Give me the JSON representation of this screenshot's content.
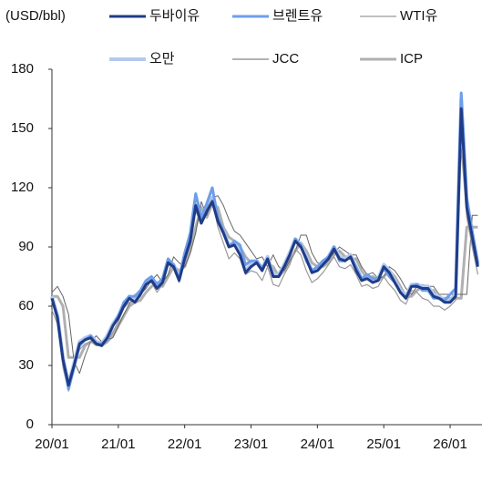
{
  "chart_data": {
    "type": "line",
    "unit_label": "(USD/bbl)",
    "x": [
      "20/01",
      "20/02",
      "20/03",
      "20/04",
      "20/05",
      "20/06",
      "20/07",
      "20/08",
      "20/09",
      "20/10",
      "20/11",
      "20/12",
      "21/01",
      "21/02",
      "21/03",
      "21/04",
      "21/05",
      "21/06",
      "21/07",
      "21/08",
      "21/09",
      "21/10",
      "21/11",
      "21/12",
      "22/01",
      "22/02",
      "22/03",
      "22/04",
      "22/05",
      "22/06",
      "22/07",
      "22/08",
      "22/09",
      "22/10",
      "22/11",
      "22/12",
      "23/01",
      "23/02",
      "23/03",
      "23/04",
      "23/05",
      "23/06",
      "23/07",
      "23/08",
      "23/09",
      "23/10",
      "23/11",
      "23/12",
      "24/01",
      "24/02",
      "24/03",
      "24/04",
      "24/05",
      "24/06",
      "24/07",
      "24/08",
      "24/09",
      "24/10",
      "24/11",
      "24/12",
      "25/01",
      "25/02",
      "25/03",
      "25/04",
      "25/05",
      "25/06",
      "25/07",
      "25/08",
      "25/09",
      "25/10",
      "25/11",
      "25/12",
      "26/01",
      "26/02",
      "26/03",
      "26/04",
      "26/05",
      "26/06"
    ],
    "xticks": [
      "20/01",
      "21/01",
      "22/01",
      "23/01",
      "24/01",
      "25/01",
      "26/01"
    ],
    "ylim": [
      0,
      180
    ],
    "yticks": [
      0,
      30,
      60,
      90,
      120,
      150,
      180
    ],
    "series": [
      {
        "name": "두바이유",
        "color": "#1f3c88",
        "width": 3,
        "values": [
          64,
          54,
          33,
          20,
          30,
          41,
          43,
          44,
          41,
          40,
          44,
          50,
          54,
          60,
          64,
          62,
          66,
          71,
          73,
          69,
          72,
          82,
          80,
          73,
          84,
          93,
          111,
          102,
          108,
          113,
          103,
          97,
          90,
          91,
          86,
          77,
          80,
          82,
          78,
          84,
          75,
          75,
          80,
          86,
          93,
          90,
          84,
          77,
          78,
          81,
          84,
          89,
          84,
          83,
          85,
          78,
          73,
          74,
          72,
          73,
          80,
          77,
          72,
          67,
          64,
          70,
          70,
          69,
          69,
          65,
          64,
          62,
          62,
          65,
          160,
          110,
          95,
          80
        ]
      },
      {
        "name": "브렌트유",
        "color": "#6d9eeb",
        "width": 3,
        "values": [
          64,
          55,
          33,
          18,
          29,
          40,
          43,
          45,
          41,
          41,
          43,
          50,
          55,
          62,
          65,
          65,
          68,
          73,
          75,
          71,
          74,
          84,
          81,
          74,
          87,
          97,
          117,
          105,
          112,
          120,
          105,
          98,
          90,
          93,
          91,
          81,
          83,
          83,
          79,
          84,
          75,
          75,
          80,
          86,
          94,
          91,
          83,
          78,
          80,
          83,
          85,
          90,
          83,
          83,
          85,
          80,
          74,
          76,
          74,
          74,
          79,
          75,
          72,
          67,
          64,
          70,
          71,
          68,
          68,
          64,
          64,
          63,
          66,
          69,
          168,
          115,
          98,
          82
        ]
      },
      {
        "name": "WTI유",
        "color": "#9a9a9a",
        "width": 1.2,
        "values": [
          58,
          51,
          29,
          17,
          29,
          38,
          41,
          42,
          40,
          40,
          42,
          47,
          52,
          59,
          62,
          62,
          65,
          71,
          72,
          67,
          71,
          81,
          79,
          72,
          83,
          91,
          108,
          102,
          110,
          114,
          100,
          92,
          84,
          87,
          84,
          76,
          78,
          77,
          73,
          80,
          71,
          70,
          76,
          81,
          89,
          86,
          78,
          72,
          74,
          77,
          81,
          85,
          80,
          79,
          81,
          76,
          70,
          71,
          69,
          70,
          75,
          71,
          68,
          63,
          61,
          68,
          67,
          64,
          63,
          60,
          60,
          58,
          60,
          63,
          140,
          105,
          90,
          76
        ]
      },
      {
        "name": "오만",
        "color": "#b4c8f0",
        "width": 4,
        "values": [
          65,
          55,
          34,
          21,
          31,
          42,
          44,
          45,
          42,
          41,
          45,
          51,
          55,
          61,
          65,
          63,
          67,
          72,
          74,
          70,
          73,
          83,
          81,
          74,
          85,
          95,
          113,
          103,
          109,
          115,
          104,
          98,
          91,
          92,
          87,
          78,
          81,
          83,
          79,
          85,
          76,
          76,
          81,
          87,
          94,
          91,
          85,
          78,
          79,
          82,
          85,
          90,
          85,
          84,
          86,
          79,
          74,
          75,
          73,
          74,
          81,
          78,
          73,
          68,
          65,
          71,
          71,
          70,
          70,
          66,
          65,
          63,
          63,
          66,
          165,
          112,
          96,
          81
        ]
      },
      {
        "name": "JCC",
        "color": "#666666",
        "width": 1,
        "values": [
          67,
          70,
          65,
          56,
          32,
          26,
          35,
          42,
          45,
          42,
          43,
          44,
          50,
          56,
          61,
          66,
          66,
          69,
          73,
          76,
          72,
          76,
          85,
          82,
          80,
          87,
          97,
          113,
          106,
          115,
          116,
          111,
          104,
          98,
          96,
          92,
          88,
          84,
          85,
          80,
          86,
          80,
          78,
          83,
          88,
          96,
          96,
          87,
          82,
          81,
          84,
          87,
          90,
          88,
          86,
          86,
          80,
          76,
          77,
          74,
          75,
          80,
          78,
          74,
          69,
          66,
          70,
          71,
          70,
          70,
          66,
          66,
          66,
          66,
          66,
          66,
          106,
          106
        ]
      },
      {
        "name": "ICP",
        "color": "#b0b0b0",
        "width": 3,
        "values": [
          65,
          65,
          60,
          34,
          34,
          34,
          40,
          42,
          42,
          40,
          42,
          45,
          50,
          55,
          60,
          62,
          63,
          67,
          70,
          72,
          70,
          75,
          80,
          78,
          80,
          88,
          100,
          110,
          105,
          112,
          110,
          100,
          95,
          93,
          90,
          85,
          82,
          82,
          80,
          82,
          80,
          75,
          78,
          83,
          88,
          92,
          88,
          82,
          80,
          80,
          82,
          86,
          88,
          85,
          84,
          84,
          78,
          74,
          75,
          73,
          75,
          78,
          75,
          70,
          65,
          65,
          68,
          70,
          68,
          68,
          64,
          64,
          64,
          64,
          64,
          100,
          100,
          100
        ]
      }
    ]
  }
}
